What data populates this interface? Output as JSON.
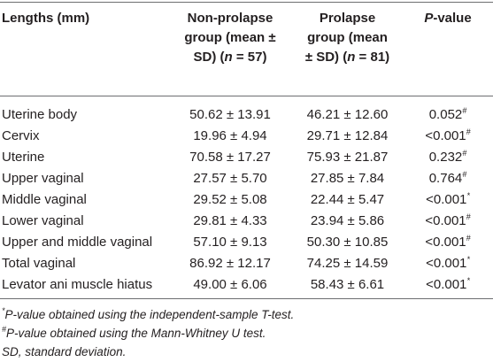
{
  "table": {
    "header": [
      [
        {
          "text": "Lengths (mm)"
        }
      ],
      [
        {
          "text": "Non-prolapse group (mean ± SD) "
        },
        {
          "text": "("
        },
        {
          "text": "n",
          "italic": true
        },
        {
          "text": " = 57)"
        }
      ],
      [
        {
          "text": "Prolapse group (mean ± SD) "
        },
        {
          "text": "("
        },
        {
          "text": "n",
          "italic": true
        },
        {
          "text": " = 81)"
        }
      ],
      [
        {
          "text": "P",
          "italic": true
        },
        {
          "text": "-value"
        }
      ]
    ],
    "rows": [
      [
        "Uterine body",
        "50.62 ± 13.91",
        "46.21 ± 12.60",
        {
          "p": "0.052",
          "note": "#"
        }
      ],
      [
        "Cervix",
        "19.96 ± 4.94",
        "29.71 ± 12.84",
        {
          "p": "<0.001",
          "note": "#"
        }
      ],
      [
        "Uterine",
        "70.58 ± 17.27",
        "75.93 ± 21.87",
        {
          "p": "0.232",
          "note": "#"
        }
      ],
      [
        "Upper vaginal",
        "27.57 ± 5.70",
        "27.85 ± 7.84",
        {
          "p": "0.764",
          "note": "#"
        }
      ],
      [
        "Middle vaginal",
        "29.52 ± 5.08",
        "22.44 ± 5.47",
        {
          "p": "<0.001",
          "note": "*"
        }
      ],
      [
        "Lower vaginal",
        "29.81 ± 4.33",
        "23.94 ± 5.86",
        {
          "p": "<0.001",
          "note": "#"
        }
      ],
      [
        "Upper and middle vaginal",
        "57.10 ± 9.13",
        "50.30 ± 10.85",
        {
          "p": "<0.001",
          "note": "#"
        }
      ],
      [
        "Total vaginal",
        "86.92 ± 12.17",
        "74.25 ± 14.59",
        {
          "p": "<0.001",
          "note": "*"
        }
      ],
      [
        "Levator ani muscle hiatus",
        "49.00 ± 6.06",
        "58.43 ± 6.61",
        {
          "p": "<0.001",
          "note": "*"
        }
      ]
    ]
  },
  "footnotes": [
    [
      {
        "sup": "*"
      },
      {
        "text": "P-value obtained using the independent-sample T-test."
      }
    ],
    [
      {
        "sup": "#"
      },
      {
        "text": "P-value obtained using the Mann-Whitney U test."
      }
    ],
    [
      {
        "text": "SD, standard deviation."
      }
    ]
  ]
}
